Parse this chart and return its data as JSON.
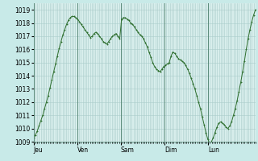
{
  "bg_color": "#c8eae8",
  "plot_bg_color": "#d8eeec",
  "grid_color": "#aaccca",
  "line_color": "#2d6e2d",
  "marker_color": "#2d6e2d",
  "ylim": [
    1009,
    1019.5
  ],
  "yticks": [
    1009,
    1010,
    1011,
    1012,
    1013,
    1014,
    1015,
    1016,
    1017,
    1018,
    1019
  ],
  "day_labels": [
    "Jeu",
    "Ven",
    "Sam",
    "Dim",
    "Lun"
  ],
  "day_positions": [
    0,
    24,
    48,
    72,
    96
  ],
  "total_hours": 122,
  "pressure_data": [
    1009.3,
    1009.5,
    1009.8,
    1010.2,
    1010.6,
    1011.0,
    1011.5,
    1012.0,
    1012.5,
    1013.1,
    1013.7,
    1014.3,
    1014.9,
    1015.5,
    1016.1,
    1016.6,
    1017.1,
    1017.5,
    1017.9,
    1018.2,
    1018.4,
    1018.5,
    1018.5,
    1018.4,
    1018.3,
    1018.1,
    1017.9,
    1017.7,
    1017.5,
    1017.3,
    1017.1,
    1016.9,
    1017.0,
    1017.2,
    1017.3,
    1017.2,
    1017.0,
    1016.8,
    1016.6,
    1016.5,
    1016.4,
    1016.6,
    1016.8,
    1017.0,
    1017.1,
    1017.2,
    1017.0,
    1016.8,
    1018.3,
    1018.4,
    1018.4,
    1018.3,
    1018.2,
    1018.0,
    1017.9,
    1017.7,
    1017.5,
    1017.3,
    1017.1,
    1017.0,
    1016.8,
    1016.5,
    1016.2,
    1015.8,
    1015.4,
    1015.0,
    1014.7,
    1014.5,
    1014.4,
    1014.3,
    1014.5,
    1014.7,
    1014.8,
    1014.9,
    1015.0,
    1015.5,
    1015.8,
    1015.7,
    1015.5,
    1015.3,
    1015.2,
    1015.1,
    1015.0,
    1014.8,
    1014.5,
    1014.2,
    1013.8,
    1013.4,
    1013.0,
    1012.5,
    1012.0,
    1011.5,
    1010.9,
    1010.3,
    1009.7,
    1009.2,
    1008.9,
    1009.0,
    1009.3,
    1009.7,
    1010.1,
    1010.4,
    1010.5,
    1010.4,
    1010.3,
    1010.1,
    1010.0,
    1010.2,
    1010.5,
    1011.0,
    1011.5,
    1012.1,
    1012.8,
    1013.5,
    1014.3,
    1015.1,
    1016.0,
    1016.8,
    1017.5,
    1018.1,
    1018.6,
    1019.0
  ]
}
